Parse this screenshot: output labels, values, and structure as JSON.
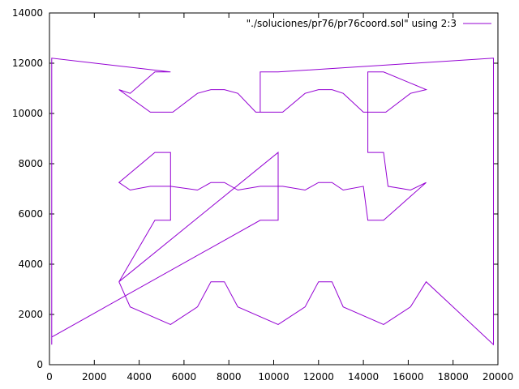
{
  "chart_data": {
    "type": "line",
    "xlim": [
      0,
      20000
    ],
    "ylim": [
      0,
      14000
    ],
    "x_ticks": [
      0,
      2000,
      4000,
      6000,
      8000,
      10000,
      12000,
      14000,
      16000,
      18000,
      20000
    ],
    "y_ticks": [
      0,
      2000,
      4000,
      6000,
      8000,
      10000,
      12000,
      14000
    ],
    "x_tick_labels": [
      "0",
      "2000",
      "4000",
      "6000",
      "8000",
      "10000",
      "12000",
      "14000",
      "16000",
      "18000",
      "20000"
    ],
    "y_tick_labels": [
      "0",
      "2000",
      "4000",
      "6000",
      "8000",
      "10000",
      "12000",
      "14000"
    ],
    "grid": false,
    "legend_position": "top-right",
    "series": [
      {
        "name": "\"./soluciones/pr76/pr76coord.sol\" using 2:3",
        "color": "#9400d3",
        "points": [
          [
            3100,
            3300
          ],
          [
            3600,
            2300
          ],
          [
            5400,
            1600
          ],
          [
            6600,
            2300
          ],
          [
            7200,
            3300
          ],
          [
            7800,
            3300
          ],
          [
            8400,
            2300
          ],
          [
            10200,
            1600
          ],
          [
            11400,
            2300
          ],
          [
            12000,
            3300
          ],
          [
            12600,
            3300
          ],
          [
            13100,
            2300
          ],
          [
            14900,
            1600
          ],
          [
            16100,
            2300
          ],
          [
            16800,
            3300
          ],
          [
            19800,
            800
          ],
          [
            19800,
            12200
          ],
          [
            10200,
            11650
          ],
          [
            9400,
            11650
          ],
          [
            9400,
            10050
          ],
          [
            10400,
            10050
          ],
          [
            11400,
            10800
          ],
          [
            12000,
            10950
          ],
          [
            12600,
            10950
          ],
          [
            13100,
            10800
          ],
          [
            14000,
            10050
          ],
          [
            15000,
            10050
          ],
          [
            16100,
            10800
          ],
          [
            16800,
            10950
          ],
          [
            14900,
            11650
          ],
          [
            14200,
            11650
          ],
          [
            14200,
            8450
          ],
          [
            14900,
            8450
          ],
          [
            15100,
            7100
          ],
          [
            16100,
            6950
          ],
          [
            16800,
            7250
          ],
          [
            14900,
            5750
          ],
          [
            14200,
            5750
          ],
          [
            14000,
            7100
          ],
          [
            13100,
            6950
          ],
          [
            12600,
            7250
          ],
          [
            12000,
            7250
          ],
          [
            11400,
            6950
          ],
          [
            10400,
            7100
          ],
          [
            9400,
            7100
          ],
          [
            8400,
            6950
          ],
          [
            7800,
            7250
          ],
          [
            7200,
            7250
          ],
          [
            6600,
            6950
          ],
          [
            5400,
            7100
          ],
          [
            4500,
            7100
          ],
          [
            3600,
            6950
          ],
          [
            3100,
            7250
          ],
          [
            4700,
            8450
          ],
          [
            5400,
            8450
          ],
          [
            5400,
            5750
          ],
          [
            4700,
            5750
          ],
          [
            3100,
            3300
          ]
        ],
        "detached": [
          [
            10200,
            8450
          ],
          [
            10200,
            5750
          ],
          [
            9400,
            5750
          ],
          [
            100,
            1100
          ],
          [
            100,
            800
          ],
          [
            100,
            12200
          ],
          [
            5400,
            11650
          ],
          [
            4700,
            11650
          ],
          [
            3600,
            10800
          ],
          [
            3100,
            10950
          ],
          [
            4500,
            10050
          ],
          [
            5500,
            10050
          ],
          [
            6600,
            10800
          ],
          [
            7200,
            10950
          ],
          [
            7800,
            10950
          ],
          [
            8400,
            10800
          ],
          [
            9200,
            10050
          ],
          [
            9400,
            10050
          ]
        ]
      }
    ]
  }
}
